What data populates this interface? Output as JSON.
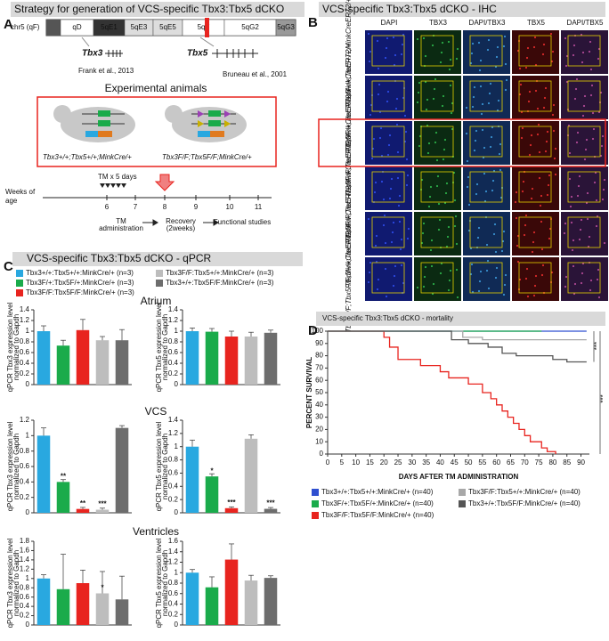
{
  "panel_a": {
    "letter": "A",
    "title": "Strategy for generation of VCS-specific Tbx3:Tbx5 dCKO",
    "chromosome": "chr5 (qF)",
    "bands": [
      "qD",
      "5qE1",
      "5qE3",
      "5qE5",
      "5qF",
      "5qG2",
      "5qG3"
    ],
    "genes": [
      "Tbx3",
      "Tbx5"
    ],
    "refs": [
      "Frank et al., 2013",
      "Bruneau et al., 2001"
    ],
    "animals_title": "Experimental animals",
    "genotypes": [
      "Tbx3+/+;Tbx5+/+;MinkCre/+",
      "Tbx3F/F;Tbx5F/F;MinkCre/+"
    ],
    "tm": "TM x 5 days",
    "age_label": [
      "Weeks of",
      "age"
    ],
    "weeks": [
      "6",
      "7",
      "8",
      "9",
      "10",
      "11"
    ],
    "steps": [
      "TM",
      "administration",
      "Recovery",
      "(2weeks)",
      "Functional studies"
    ]
  },
  "panel_b": {
    "letter": "B",
    "title": "VCS-specific Tbx3:Tbx5 dCKO - IHC",
    "columns": [
      "DAPI",
      "TBX3",
      "DAPI/TBX3",
      "TBX5",
      "DAPI/TBX5"
    ],
    "rows": [
      "Tbx3+/+;Tbx5+/+;MinkCreERT2/+",
      "Tbx3F/+;Tbx5F/+;MinkCreERT2/+",
      "Tbx3F/F;Tbx5F/F;MinkCreERT2/+",
      "Tbx3F/F;Tbx5+/+;MinkCreERT2/+",
      "Tbx3+/+;Tbx5F/F;MinkCreERT2/+",
      "Tbx3F/F;Tbx5F/F;MinkCreERT2/+"
    ]
  },
  "panel_c": {
    "letter": "C",
    "title": "VCS-specific Tbx3:Tbx5 dCKO - qPCR",
    "sections": [
      "Atrium",
      "VCS",
      "Ventricles"
    ],
    "legend": [
      {
        "name": "Tbx3+/+:Tbx5+/+:MinkCre/+ (n=3)",
        "color": "#29a8e0"
      },
      {
        "name": "Tbx3F/+:Tbx5F/+:MinkCre/+ (n=3)",
        "color": "#1aab4b"
      },
      {
        "name": "Tbx3F/F:Tbx5F/F:MinkCre/+ (n=3)",
        "color": "#e8241f"
      },
      {
        "name": "Tbx3F/F:Tbx5+/+:MinkCre/+ (n=3)",
        "color": "#bdbdbd"
      },
      {
        "name": "Tbx3+/+:Tbx5F/F:MinkCre/+ (n=3)",
        "color": "#6d6d6d"
      }
    ]
  },
  "panel_d": {
    "letter": "D"
  },
  "chart_data": [
    {
      "type": "bar",
      "ylabel": [
        "qPCR Tbx3 expression level",
        "normalized to Gapdh"
      ],
      "categories": [
        null,
        null,
        null,
        null,
        null
      ],
      "values": [
        1.0,
        0.73,
        1.02,
        0.83,
        0.83
      ],
      "errors": [
        0.1,
        0.1,
        0.2,
        0.07,
        0.2
      ],
      "annotations": [
        null,
        null,
        null,
        null,
        null
      ],
      "ylim": [
        0,
        1.4
      ],
      "yticks": [
        0,
        0.2,
        0.4,
        0.6,
        0.8,
        1,
        1.2,
        1.4
      ]
    },
    {
      "type": "bar",
      "ylabel": [
        "qPCR Tbx5 expression level",
        "normalized to Gapdh"
      ],
      "categories": [
        null,
        null,
        null,
        null,
        null
      ],
      "values": [
        1.0,
        0.99,
        0.9,
        0.9,
        0.97
      ],
      "errors": [
        0.06,
        0.06,
        0.1,
        0.08,
        0.05
      ],
      "annotations": [
        null,
        null,
        null,
        null,
        null
      ],
      "ylim": [
        0,
        1.4
      ],
      "yticks": [
        0,
        0.2,
        0.4,
        0.6,
        0.8,
        1,
        1.2,
        1.4
      ]
    },
    {
      "type": "bar",
      "ylabel": [
        "qPCR Tbx3 expression level",
        "normalized to Gapdh"
      ],
      "categories": [
        null,
        null,
        null,
        null,
        null
      ],
      "values": [
        1.0,
        0.4,
        0.05,
        0.04,
        1.1
      ],
      "errors": [
        0.1,
        0.03,
        0.02,
        0.02,
        0.03
      ],
      "annotations": [
        null,
        "**",
        "**",
        "***",
        null
      ],
      "ylim": [
        0,
        1.2
      ],
      "yticks": [
        0,
        0.2,
        0.4,
        0.6,
        0.8,
        1,
        1.2
      ]
    },
    {
      "type": "bar",
      "ylabel": [
        "qPCR Tbx5 expression level",
        "normalized to Gapdh"
      ],
      "categories": [
        null,
        null,
        null,
        null,
        null
      ],
      "values": [
        1.0,
        0.55,
        0.07,
        1.12,
        0.06
      ],
      "errors": [
        0.1,
        0.04,
        0.02,
        0.06,
        0.02
      ],
      "annotations": [
        null,
        "*",
        "***",
        null,
        "***"
      ],
      "ylim": [
        0,
        1.4
      ],
      "yticks": [
        0,
        0.2,
        0.4,
        0.6,
        0.8,
        1,
        1.2,
        1.4
      ]
    },
    {
      "type": "bar",
      "ylabel": [
        "qPCR Tbx3 expression level",
        "normalized to Gapdh"
      ],
      "categories": [
        null,
        null,
        null,
        null,
        null
      ],
      "values": [
        1.0,
        0.77,
        0.9,
        0.68,
        0.55
      ],
      "errors": [
        0.08,
        0.75,
        0.28,
        0.47,
        0.5
      ],
      "annotations": [
        null,
        null,
        null,
        "*",
        null
      ],
      "ylim": [
        0,
        1.8
      ],
      "yticks": [
        0,
        0.2,
        0.4,
        0.6,
        0.8,
        1,
        1.2,
        1.4,
        1.6,
        1.8
      ]
    },
    {
      "type": "bar",
      "ylabel": [
        "qPCR Tbx5 expression level",
        "normalized to Gapdh"
      ],
      "categories": [
        null,
        null,
        null,
        null,
        null
      ],
      "values": [
        1.0,
        0.72,
        1.25,
        0.85,
        0.9
      ],
      "errors": [
        0.06,
        0.2,
        0.3,
        0.1,
        0.04
      ],
      "annotations": [
        null,
        null,
        null,
        null,
        null
      ],
      "ylim": [
        0,
        1.6
      ],
      "yticks": [
        0,
        0.2,
        0.4,
        0.6,
        0.8,
        1,
        1.2,
        1.4,
        1.6
      ]
    },
    {
      "type": "line",
      "title": "VCS-specific Tbx3:Tbx5 dCKO - mortality",
      "xlabel": "DAYS AFTER TM ADMINISTRATION",
      "ylabel": "PERCENT SURVIVAL",
      "xlim": [
        0,
        93
      ],
      "xticks": [
        0,
        5,
        10,
        15,
        20,
        25,
        30,
        35,
        40,
        45,
        50,
        55,
        60,
        65,
        70,
        75,
        80,
        85,
        90
      ],
      "ylim": [
        0,
        100
      ],
      "yticks": [
        0,
        10,
        20,
        30,
        40,
        50,
        60,
        70,
        80,
        90,
        100
      ],
      "annotations": [
        "***",
        "***"
      ],
      "series": [
        {
          "name": "Tbx3+/+:Tbx5+/+:MinkCre/+ (n=40)",
          "color": "#2f4fd0",
          "x": [
            0,
            92
          ],
          "values": [
            100,
            100
          ]
        },
        {
          "name": "Tbx3F/+:Tbx5F/+:MinkCre/+ (n=40)",
          "color": "#1aab4b",
          "x": [
            0,
            76
          ],
          "values": [
            100,
            100
          ]
        },
        {
          "name": "Tbx3F/F:Tbx5F/F:MinkCre/+ (n=40)",
          "color": "#e8241f",
          "x": [
            0,
            20,
            20,
            22,
            22,
            25,
            25,
            33,
            33,
            40,
            40,
            43,
            43,
            50,
            50,
            55,
            55,
            58,
            58,
            60,
            60,
            62,
            62,
            64,
            64,
            66,
            66,
            68,
            68,
            70,
            70,
            72,
            72,
            76,
            76,
            78,
            78,
            81,
            81
          ],
          "values": [
            100,
            100,
            95,
            95,
            87,
            87,
            77,
            77,
            72,
            72,
            67,
            67,
            62,
            62,
            57,
            57,
            50,
            50,
            45,
            45,
            40,
            40,
            35,
            35,
            30,
            30,
            25,
            25,
            20,
            20,
            15,
            15,
            10,
            10,
            5,
            5,
            2,
            2,
            0
          ]
        },
        {
          "name": "Tbx3F/F:Tbx5+/+:MinkCre/+ (n=40)",
          "color": "#a8a8a8",
          "x": [
            0,
            48,
            48,
            55,
            55,
            92
          ],
          "values": [
            100,
            100,
            95,
            95,
            93,
            93
          ]
        },
        {
          "name": "Tbx3+/+:Tbx5F/F:MinkCre/+ (n=40)",
          "color": "#555555",
          "x": [
            0,
            44,
            44,
            50,
            50,
            57,
            57,
            62,
            62,
            67,
            67,
            80,
            80,
            85,
            85,
            92
          ],
          "values": [
            100,
            100,
            93,
            93,
            90,
            90,
            87,
            87,
            82,
            82,
            80,
            80,
            77,
            77,
            75,
            75
          ]
        }
      ]
    }
  ]
}
